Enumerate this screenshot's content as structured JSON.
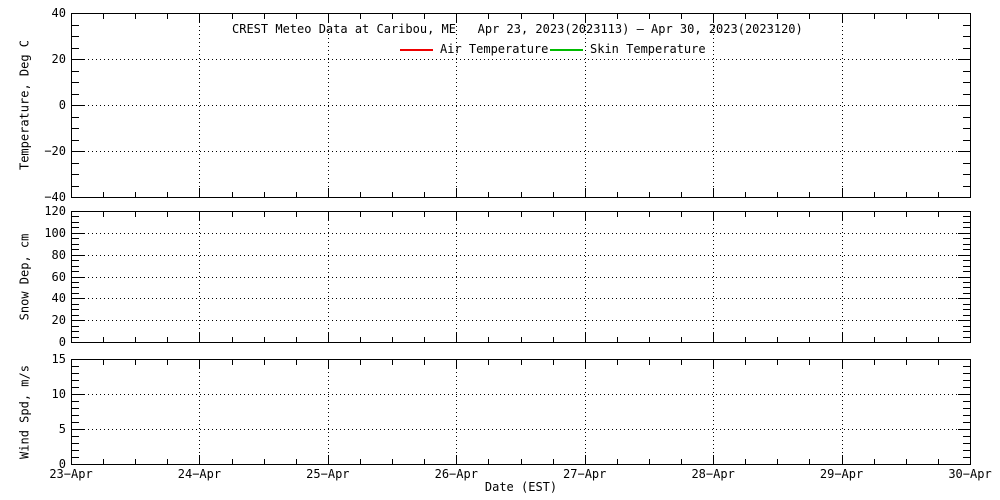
{
  "header": {
    "title": "CREST Meteo Data at Caribou, ME   Apr 23, 2023(2023113) — Apr 30, 2023(2023120)"
  },
  "legend": {
    "items": [
      {
        "label": "Air Temperature",
        "color": "#ee0000"
      },
      {
        "label": "Skin Temperature",
        "color": "#00bb00"
      }
    ]
  },
  "x_axis": {
    "title": "Date (EST)",
    "tick_labels": [
      "23−Apr",
      "24−Apr",
      "25−Apr",
      "26−Apr",
      "27−Apr",
      "28−Apr",
      "29−Apr",
      "30−Apr"
    ],
    "minor_ticks_per_day": 3
  },
  "panels": [
    {
      "name": "temperature",
      "y_title": "Temperature, Deg C",
      "ymin": -40,
      "ymax": 40,
      "minor_step": 5,
      "tick_labels": [
        {
          "value": 40,
          "label": "40"
        },
        {
          "value": 20,
          "label": "20"
        },
        {
          "value": 0,
          "label": "0"
        },
        {
          "value": -20,
          "label": "−20"
        },
        {
          "value": -40,
          "label": "−40"
        }
      ],
      "gridline_values": [
        20,
        0,
        -20
      ]
    },
    {
      "name": "snow-depth",
      "y_title": "Snow Dep, cm",
      "ymin": 0,
      "ymax": 120,
      "minor_step": 5,
      "tick_labels": [
        {
          "value": 120,
          "label": "120"
        },
        {
          "value": 100,
          "label": "100"
        },
        {
          "value": 80,
          "label": "80"
        },
        {
          "value": 60,
          "label": "60"
        },
        {
          "value": 40,
          "label": "40"
        },
        {
          "value": 20,
          "label": "20"
        },
        {
          "value": 0,
          "label": "0"
        }
      ],
      "gridline_values": [
        100,
        80,
        60,
        40,
        20
      ]
    },
    {
      "name": "wind-speed",
      "y_title": "Wind Spd, m/s",
      "ymin": 0,
      "ymax": 15,
      "minor_step": 1,
      "tick_labels": [
        {
          "value": 15,
          "label": "15"
        },
        {
          "value": 10,
          "label": "10"
        },
        {
          "value": 5,
          "label": "5"
        },
        {
          "value": 0,
          "label": "0"
        }
      ],
      "gridline_values": [
        10,
        5
      ]
    }
  ],
  "chart_data": [
    {
      "type": "line",
      "title": "CREST Meteo Data at Caribou, ME   Apr 23, 2023(2023113) — Apr 30, 2023(2023120)",
      "xlabel": "Date (EST)",
      "ylabel": "Temperature, Deg C",
      "x": [
        "23-Apr",
        "24-Apr",
        "25-Apr",
        "26-Apr",
        "27-Apr",
        "28-Apr",
        "29-Apr",
        "30-Apr"
      ],
      "ylim": [
        -40,
        40
      ],
      "yticks": [
        -40,
        -20,
        0,
        20,
        40
      ],
      "grid": "dotted",
      "legend_position": "top",
      "series": [
        {
          "name": "Air Temperature",
          "color": "#ee0000",
          "values": []
        },
        {
          "name": "Skin Temperature",
          "color": "#00bb00",
          "values": []
        }
      ],
      "note": "axes drawn, no data points plotted"
    },
    {
      "type": "line",
      "ylabel": "Snow Dep, cm",
      "x": [
        "23-Apr",
        "24-Apr",
        "25-Apr",
        "26-Apr",
        "27-Apr",
        "28-Apr",
        "29-Apr",
        "30-Apr"
      ],
      "ylim": [
        0,
        120
      ],
      "yticks": [
        0,
        20,
        40,
        60,
        80,
        100,
        120
      ],
      "grid": "dotted",
      "series": [],
      "note": "axes drawn, no data points plotted"
    },
    {
      "type": "line",
      "xlabel": "Date (EST)",
      "ylabel": "Wind Spd, m/s",
      "x": [
        "23-Apr",
        "24-Apr",
        "25-Apr",
        "26-Apr",
        "27-Apr",
        "28-Apr",
        "29-Apr",
        "30-Apr"
      ],
      "ylim": [
        0,
        15
      ],
      "yticks": [
        0,
        5,
        10,
        15
      ],
      "grid": "dotted",
      "series": [],
      "note": "axes drawn, no data points plotted"
    }
  ]
}
